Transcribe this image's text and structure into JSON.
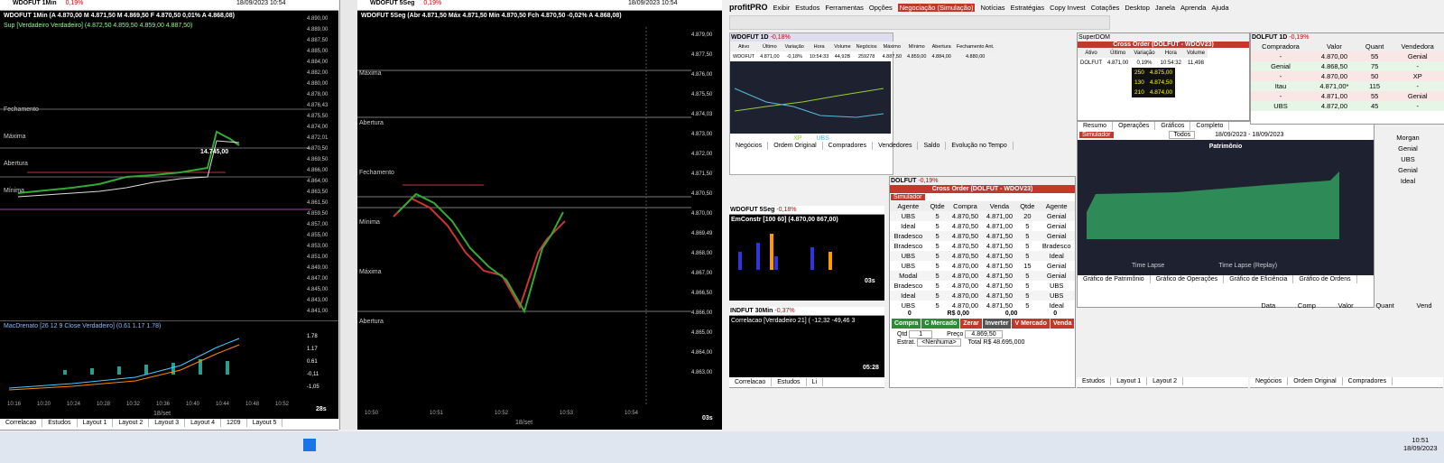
{
  "left_chart": {
    "title": "WDOFUT 1Min",
    "change": "0,19%",
    "datetime": "18/09/2023 10:54",
    "info": "WDOFUT 1Min (A 4.870,00 M 4.871,50 M 4.869,50 F 4.870,50 0,01% A 4.868,08)",
    "indicator": "Sup [Verdadeiro Verdadeiro] (4.872,50 4.859,50 4.859,00 4.887,50)",
    "annotation": "14.745,00",
    "line_labels": [
      "Fechamento",
      "Máxima",
      "Abertura",
      "Mínima"
    ],
    "price_labels": [
      "4.890,00",
      "4.889,00",
      "4.887,50",
      "4.885,00",
      "4.884,00",
      "4.882,00",
      "4.880,00",
      "4.878,00",
      "4.876,43",
      "4.875,50",
      "4.874,00",
      "4.872,01",
      "4.870,50",
      "4.869,50",
      "4.866,00",
      "4.864,00",
      "4.863,50",
      "4.861,50",
      "4.859,50",
      "4.857,00",
      "4.855,00",
      "4.853,00",
      "4.851,00",
      "4.849,00",
      "4.847,00",
      "4.845,00",
      "4.843,00",
      "4.841,00"
    ],
    "lower_indicator": "MacDrenato [26 12 9 Close Verdadeiro] (0.61 1.17 1.78)",
    "lower_labels": [
      "1.78",
      "1.17",
      "0.61",
      "-0,11",
      "-1,05"
    ],
    "times": [
      "10:16",
      "10:20",
      "10:24",
      "10:28",
      "10:32",
      "10:36",
      "10:40",
      "10:44",
      "10:48",
      "10:52"
    ],
    "date": "18/set",
    "timer": "28s",
    "tabs": [
      "Correlacao",
      "Estudos",
      "Layout 1",
      "Layout 2",
      "Layout 3",
      "Layout 4",
      "1209",
      "Layout 5"
    ]
  },
  "middle_chart": {
    "title": "WDOFUT 5Seg",
    "change": "0,19%",
    "datetime": "18/09/2023 10:54",
    "info": "WDOFUT 5Seg (Abr 4.871,50 Máx 4.871,50 Mín 4.870,50 Fch 4.870,50 -0,02% A 4.868,08)",
    "line_labels": [
      "Máxima",
      "Abertura",
      "Fechamento",
      "Mínima",
      "Máxima",
      "Abertura"
    ],
    "price_labels": [
      "4.879,00",
      "4.877,50",
      "4.876,00",
      "4.875,50",
      "4.874,03",
      "4.873,00",
      "4.872,00",
      "4.871,50",
      "4.870,50",
      "4.870,00",
      "4.869,49",
      "4.868,00",
      "4.867,00",
      "4.866,50",
      "4.866,00",
      "4.865,00",
      "4.864,00",
      "4.863,00"
    ],
    "times": [
      "10:50",
      "10:51",
      "10:52",
      "10:53",
      "10:54"
    ],
    "date": "18/set",
    "timer": "03s"
  },
  "menu": [
    "profitPRO",
    "Exibir",
    "Estudos",
    "Ferramentas",
    "Opções",
    "Negociação (Simulação)",
    "Notícias",
    "Estratégias",
    "Copy Invest",
    "Cotações",
    "Desktop",
    "Janela",
    "Aprenda",
    "Ajuda"
  ],
  "quote": {
    "title": "WDOFUT 1D",
    "change": "-0,18%",
    "columns": [
      "Ativo",
      "Último",
      "Variação",
      "Hora",
      "Volume",
      "Negócios",
      "Máximo",
      "Mínimo",
      "Abertura",
      "Fechamento Ant."
    ],
    "row": [
      "WDOFUT",
      "4.871,00",
      "-0,18%",
      "10:54:33",
      "44,92B",
      "259278",
      "4.887,50",
      "4.859,00",
      "4.884,00",
      "4.880,00"
    ],
    "legend": [
      "XP",
      "UBS"
    ],
    "tabs": [
      "Negócios",
      "Ordem Original",
      "Compradores",
      "Vendedores",
      "Saldo",
      "Evolução no Tempo"
    ]
  },
  "small_chart": {
    "title": "WDOFUT 5Seg",
    "change": "-0,18%",
    "info": "EmConstr [100 60] (4.870,00 867,00)",
    "timer": "03s"
  },
  "ind_chart": {
    "title": "INDFUT 30Min",
    "change": "-0,37%",
    "info": "Correlacao [Verdadeiro 21] ( -12,32 -49,46 3",
    "timer": "05:28"
  },
  "cross": {
    "asset": "DOLFUT",
    "change": "-0,19%",
    "title": "Cross Order (DOLFUT - WDOV23)",
    "account": "Simulador",
    "columns": [
      "Agente",
      "Qtde",
      "Compra",
      "Venda",
      "Qtde",
      "Agente"
    ],
    "rows": [
      [
        "UBS",
        "5",
        "4.870,50",
        "4.871,00",
        "20",
        "Genial"
      ],
      [
        "Ideal",
        "5",
        "4.870,50",
        "4.871,00",
        "5",
        "Genial"
      ],
      [
        "Bradesco",
        "5",
        "4.870,50",
        "4.871,50",
        "5",
        "Genial"
      ],
      [
        "Bradesco",
        "5",
        "4.870,50",
        "4.871,50",
        "5",
        "Bradesco"
      ],
      [
        "UBS",
        "5",
        "4.870,50",
        "4.871,50",
        "5",
        "Ideal"
      ],
      [
        "UBS",
        "5",
        "4.870,00",
        "4.871,50",
        "15",
        "Genial"
      ],
      [
        "Modal",
        "5",
        "4.870,00",
        "4.871,50",
        "5",
        "Genial"
      ],
      [
        "Bradesco",
        "5",
        "4.870,00",
        "4.871,50",
        "5",
        "UBS"
      ],
      [
        "Ideal",
        "5",
        "4.870,00",
        "4.871,50",
        "5",
        "UBS"
      ],
      [
        "UBS",
        "5",
        "4.870,00",
        "4.871,50",
        "5",
        "Ideal"
      ]
    ],
    "totals": [
      "0",
      "R$ 0,00",
      "0,00",
      "0"
    ],
    "buttons": [
      "Compra",
      "C Mercado",
      "Zerar",
      "Inverter",
      "V Mercado",
      "Venda"
    ],
    "qty_label": "Qtd",
    "qty": "1",
    "price_label": "Preço",
    "price": "4.869,50",
    "strategy_label": "Estrat.",
    "strategy": "<Nenhuma>",
    "total_label": "Total",
    "total": "R$ 48.695,000"
  },
  "super_dom": {
    "title": "SuperDOM",
    "cross_title": "Cross Order (DOLFUT - WDOV23)",
    "columns": [
      "Ativo",
      "Último",
      "Variação",
      "Hora",
      "Volume"
    ],
    "row": [
      "DOLFUT",
      "4.871,00",
      "0,19%",
      "10:54:32",
      "11,498"
    ],
    "book": [
      [
        "250",
        "4.875,00"
      ],
      [
        "130",
        "4.874,50"
      ],
      [
        "210",
        "4.874,00"
      ]
    ]
  },
  "results": {
    "tabs": [
      "Resumo",
      "Operações",
      "Gráficos",
      "Completo"
    ],
    "account": "Simulador",
    "filter": "Todos",
    "period": "18/09/2023 - 18/09/2023",
    "title": "Patrimônio",
    "legend": [
      "Time Lapse",
      "Time Lapse (Replay)"
    ],
    "bottom_tabs": [
      "Gráfico de Patrimônio",
      "Gráfico de Operações",
      "Gráfico de Eficiência",
      "Gráfico de Ordens"
    ]
  },
  "book": {
    "title": "DOLFUT 1D",
    "change": "-0,19%",
    "columns": [
      "Compradora",
      "Valor",
      "Quant",
      "Vendedora"
    ],
    "rows": [
      [
        "-",
        "4.870,00",
        "55",
        "Genial"
      ],
      [
        "Genial",
        "4.868,50",
        "75",
        "-"
      ],
      [
        "-",
        "4.870,00",
        "50",
        "XP"
      ],
      [
        "Itau",
        "4.871,00*",
        "115",
        "-"
      ],
      [
        "-",
        "4.871,00",
        "55",
        "Genial"
      ],
      [
        "UBS",
        "4.872,00",
        "45",
        "-"
      ]
    ],
    "side": [
      "Morgan",
      "Genial",
      "UBS",
      "Genial",
      "Ideal"
    ],
    "trade_columns": [
      "Data",
      "Comp",
      "Valor",
      "Quant",
      "Vend"
    ],
    "tabs": [
      "Negócios",
      "Ordem Original",
      "Compradores"
    ]
  },
  "bottom_tabs_mid": [
    "Correlacao",
    "Estudos",
    "Li"
  ],
  "bottom_tabs_right": [
    "Estudos",
    "Layout 1",
    "Layout 2"
  ],
  "taskbar": {
    "time": "10:51",
    "date": "18/09/2023"
  }
}
